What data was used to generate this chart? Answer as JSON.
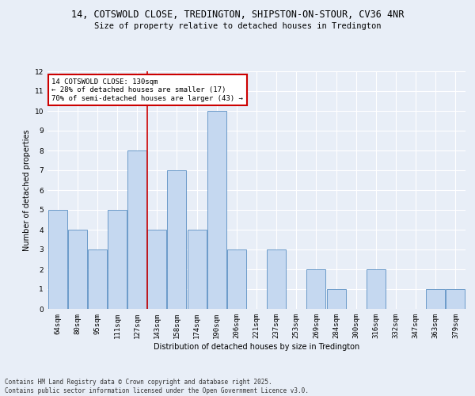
{
  "title_line1": "14, COTSWOLD CLOSE, TREDINGTON, SHIPSTON-ON-STOUR, CV36 4NR",
  "title_line2": "Size of property relative to detached houses in Tredington",
  "xlabel": "Distribution of detached houses by size in Tredington",
  "ylabel": "Number of detached properties",
  "categories": [
    "64sqm",
    "80sqm",
    "95sqm",
    "111sqm",
    "127sqm",
    "143sqm",
    "158sqm",
    "174sqm",
    "190sqm",
    "206sqm",
    "221sqm",
    "237sqm",
    "253sqm",
    "269sqm",
    "284sqm",
    "300sqm",
    "316sqm",
    "332sqm",
    "347sqm",
    "363sqm",
    "379sqm"
  ],
  "values": [
    5,
    4,
    3,
    5,
    8,
    4,
    7,
    4,
    10,
    3,
    0,
    3,
    0,
    2,
    1,
    0,
    2,
    0,
    0,
    1,
    1
  ],
  "bar_color": "#c5d8f0",
  "bar_edge_color": "#5a8fc3",
  "background_color": "#e8eef7",
  "grid_color": "#ffffff",
  "redline_x": 4.5,
  "annotation_text": "14 COTSWOLD CLOSE: 130sqm\n← 28% of detached houses are smaller (17)\n70% of semi-detached houses are larger (43) →",
  "annotation_box_color": "#ffffff",
  "annotation_box_edge": "#cc0000",
  "ylim": [
    0,
    12
  ],
  "yticks": [
    0,
    1,
    2,
    3,
    4,
    5,
    6,
    7,
    8,
    9,
    10,
    11,
    12
  ],
  "footer": "Contains HM Land Registry data © Crown copyright and database right 2025.\nContains public sector information licensed under the Open Government Licence v3.0.",
  "title_fontsize": 8.5,
  "subtitle_fontsize": 7.5,
  "axis_label_fontsize": 7,
  "tick_fontsize": 6.5,
  "annotation_fontsize": 6.5,
  "footer_fontsize": 5.5
}
